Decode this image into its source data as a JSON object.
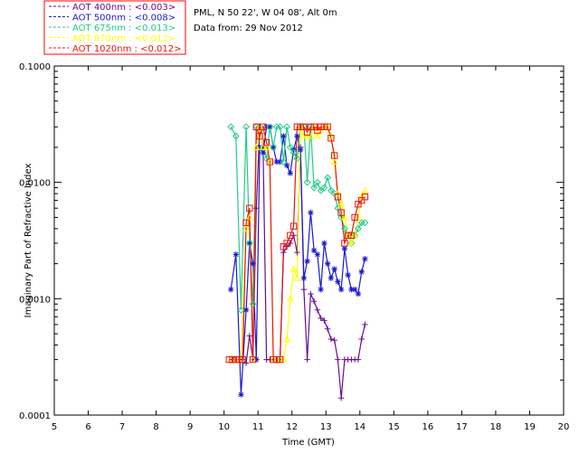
{
  "chart_data": {
    "type": "line",
    "title_lines": [
      "PML, N 50 22', W 04 08', Alt 0m",
      "Data from: 29 Nov 2012"
    ],
    "xlabel": "Time (GMT)",
    "ylabel": "Imaginary Part of Refractive Index",
    "xlim": [
      5,
      20
    ],
    "ylim": [
      0.0001,
      0.1
    ],
    "yscale": "log",
    "x_ticks": [
      5,
      6,
      7,
      8,
      9,
      10,
      11,
      12,
      13,
      14,
      15,
      16,
      17,
      18,
      19,
      20
    ],
    "x_tick_labels": [
      "5",
      "6",
      "7",
      "8",
      "9",
      "10",
      "11",
      "12",
      "13",
      "14",
      "15",
      "16",
      "17",
      "18",
      "19",
      "20"
    ],
    "y_ticks": [
      0.0001,
      0.001,
      0.01,
      0.1
    ],
    "y_tick_labels": [
      "0.0001",
      "0.0010",
      "0.0100",
      "0.1000"
    ],
    "legend_position": "top-left",
    "series": [
      {
        "name": "AOT  400nm : <0.003>",
        "color": "#6a0d8c",
        "marker": "plus",
        "x": [
          10.3,
          10.45,
          10.55,
          10.65,
          10.75,
          10.85,
          10.95,
          11.05,
          11.15,
          11.25,
          11.35,
          11.45,
          11.55,
          11.65,
          11.75,
          11.85,
          11.95,
          12.05,
          12.15,
          12.25,
          12.35,
          12.45,
          12.55,
          12.65,
          12.75,
          12.85,
          12.95,
          13.05,
          13.15,
          13.25,
          13.35,
          13.45,
          13.55,
          13.65,
          13.75,
          13.85,
          13.95,
          14.05,
          14.15
        ],
        "y": [
          0.0003,
          0.0003,
          0.0003,
          0.00028,
          0.00048,
          0.0003,
          0.006,
          0.03,
          0.02,
          0.0003,
          0.0003,
          0.0003,
          0.0003,
          0.0003,
          0.0025,
          0.0028,
          0.003,
          0.0035,
          0.0025,
          0.02,
          0.0012,
          0.0003,
          0.0011,
          0.00095,
          0.0008,
          0.00068,
          0.00065,
          0.00055,
          0.00045,
          0.00044,
          0.0003,
          0.00014,
          0.0003,
          0.0003,
          0.0003,
          0.0003,
          0.0003,
          0.00045,
          0.0006
        ]
      },
      {
        "name": "AOT  500nm : <0.008>",
        "color": "#1a1acc",
        "marker": "star",
        "x": [
          10.2,
          10.35,
          10.5,
          10.65,
          10.75,
          10.85,
          10.95,
          11.05,
          11.15,
          11.25,
          11.35,
          11.45,
          11.55,
          11.65,
          11.75,
          11.85,
          11.95,
          12.05,
          12.15,
          12.25,
          12.35,
          12.45,
          12.55,
          12.65,
          12.75,
          12.85,
          12.95,
          13.05,
          13.15,
          13.25,
          13.35,
          13.45,
          13.55,
          13.65,
          13.75,
          13.85,
          13.95,
          14.05,
          14.15
        ],
        "y": [
          0.0012,
          0.0024,
          0.00015,
          0.0008,
          0.003,
          0.002,
          0.0003,
          0.02,
          0.018,
          0.03,
          0.03,
          0.02,
          0.015,
          0.015,
          0.025,
          0.014,
          0.012,
          0.019,
          0.025,
          0.019,
          0.0015,
          0.0021,
          0.0055,
          0.0026,
          0.0024,
          0.0012,
          0.003,
          0.002,
          0.0015,
          0.0018,
          0.0014,
          0.0012,
          0.0027,
          0.0016,
          0.0012,
          0.0012,
          0.0011,
          0.0017,
          0.0022
        ]
      },
      {
        "name": "AOT  675nm : <0.013>",
        "color": "#22cc88",
        "marker": "diamond",
        "x": [
          10.2,
          10.35,
          10.5,
          10.65,
          10.75,
          10.85,
          10.95,
          11.05,
          11.15,
          11.25,
          11.35,
          11.45,
          11.55,
          11.65,
          11.75,
          11.85,
          11.95,
          12.05,
          12.15,
          12.25,
          12.35,
          12.45,
          12.55,
          12.65,
          12.75,
          12.85,
          12.95,
          13.05,
          13.15,
          13.25,
          13.35,
          13.45,
          13.55,
          13.65,
          13.75,
          13.85,
          13.95,
          14.05,
          14.15
        ],
        "y": [
          0.03,
          0.025,
          0.0008,
          0.03,
          0.003,
          0.0009,
          0.03,
          0.03,
          0.02,
          0.016,
          0.03,
          0.02,
          0.03,
          0.03,
          0.015,
          0.03,
          0.02,
          0.018,
          0.016,
          0.03,
          0.03,
          0.01,
          0.03,
          0.009,
          0.01,
          0.0085,
          0.009,
          0.011,
          0.0085,
          0.008,
          0.006,
          0.005,
          0.004,
          0.0035,
          0.003,
          0.0035,
          0.004,
          0.0045,
          0.0045
        ]
      },
      {
        "name": "AOT  870nm : <0.012>",
        "color": "#ffff00",
        "marker": "triangle",
        "x": [
          10.2,
          10.35,
          10.5,
          10.65,
          10.75,
          10.85,
          10.95,
          11.05,
          11.15,
          11.25,
          11.35,
          11.45,
          11.55,
          11.65,
          11.75,
          11.85,
          11.95,
          12.05,
          12.15,
          12.25,
          12.35,
          12.45,
          12.55,
          12.65,
          12.75,
          12.85,
          12.95,
          13.05,
          13.15,
          13.25,
          13.35,
          13.45,
          13.55,
          13.65,
          13.75,
          13.85,
          13.95,
          14.05,
          14.15
        ],
        "y": [
          0.0003,
          0.0003,
          0.0003,
          0.004,
          0.005,
          0.0003,
          0.02,
          0.03,
          0.02,
          0.02,
          0.015,
          0.0003,
          0.0003,
          0.0003,
          0.0003,
          0.00045,
          0.001,
          0.0018,
          0.0015,
          0.03,
          0.025,
          0.025,
          0.025,
          0.03,
          0.025,
          0.028,
          0.03,
          0.03,
          0.025,
          0.015,
          0.008,
          0.0065,
          0.005,
          0.0035,
          0.003,
          0.0035,
          0.005,
          0.0075,
          0.0085
        ]
      },
      {
        "name": "AOT 1020nm : <0.012>",
        "color": "#ee1111",
        "marker": "square",
        "x": [
          10.15,
          10.25,
          10.35,
          10.45,
          10.55,
          10.65,
          10.75,
          10.85,
          10.95,
          11.05,
          11.15,
          11.25,
          11.35,
          11.45,
          11.55,
          11.65,
          11.75,
          11.85,
          11.95,
          12.05,
          12.15,
          12.25,
          12.35,
          12.45,
          12.55,
          12.65,
          12.75,
          12.85,
          12.95,
          13.05,
          13.15,
          13.25,
          13.35,
          13.45,
          13.55,
          13.65,
          13.75,
          13.85,
          13.95,
          14.05,
          14.15
        ],
        "y": [
          0.0003,
          0.0003,
          0.0003,
          0.0003,
          0.0003,
          0.0045,
          0.006,
          0.0003,
          0.03,
          0.025,
          0.03,
          0.022,
          0.015,
          0.0003,
          0.0003,
          0.0003,
          0.0028,
          0.003,
          0.0035,
          0.0042,
          0.03,
          0.03,
          0.03,
          0.027,
          0.03,
          0.03,
          0.028,
          0.03,
          0.03,
          0.03,
          0.024,
          0.017,
          0.0075,
          0.0055,
          0.003,
          0.0035,
          0.0035,
          0.005,
          0.0065,
          0.007,
          0.0075
        ]
      }
    ]
  }
}
